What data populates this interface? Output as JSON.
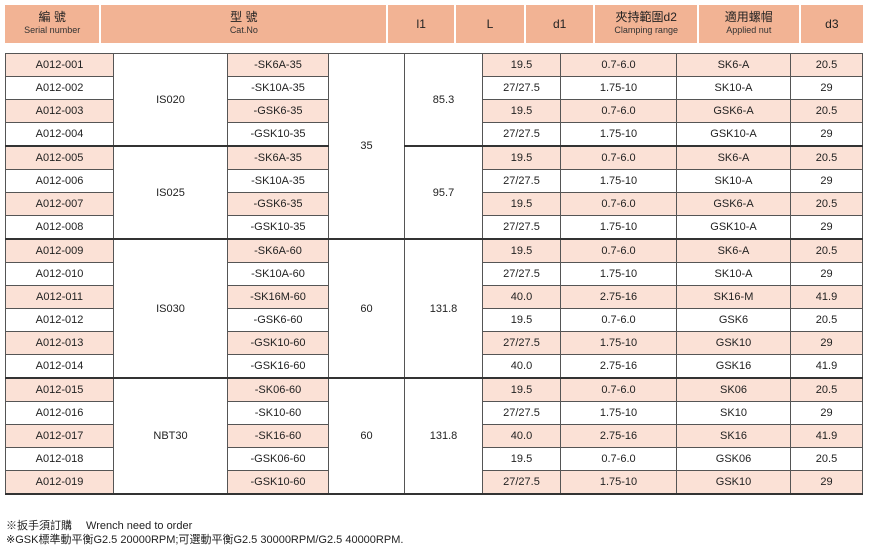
{
  "header": [
    {
      "zh": "編 號",
      "en": "Serial number"
    },
    {
      "zh": "型 號",
      "en": "Cat.No"
    },
    {
      "zh": "l1",
      "en": ""
    },
    {
      "zh": "L",
      "en": ""
    },
    {
      "zh": "d1",
      "en": ""
    },
    {
      "zh": "夾持範圍d2",
      "en": "Clamping range"
    },
    {
      "zh": "適用螺帽",
      "en": "Applied nut"
    },
    {
      "zh": "d3",
      "en": ""
    }
  ],
  "groups": [
    {
      "model": "IS020",
      "l1": "35",
      "L": "85.3"
    },
    {
      "model": "IS025",
      "l1": "35",
      "L": "95.7"
    },
    {
      "model": "IS030",
      "l1": "60",
      "L": "131.8"
    },
    {
      "model": "NBT30",
      "l1": "60",
      "L": "131.8"
    }
  ],
  "rows": [
    [
      "A012-001",
      "-SK6A-35",
      "19.5",
      "0.7-6.0",
      "SK6-A",
      "20.5"
    ],
    [
      "A012-002",
      "-SK10A-35",
      "27/27.5",
      "1.75-10",
      "SK10-A",
      "29"
    ],
    [
      "A012-003",
      "-GSK6-35",
      "19.5",
      "0.7-6.0",
      "GSK6-A",
      "20.5"
    ],
    [
      "A012-004",
      "-GSK10-35",
      "27/27.5",
      "1.75-10",
      "GSK10-A",
      "29"
    ],
    [
      "A012-005",
      "-SK6A-35",
      "19.5",
      "0.7-6.0",
      "SK6-A",
      "20.5"
    ],
    [
      "A012-006",
      "-SK10A-35",
      "27/27.5",
      "1.75-10",
      "SK10-A",
      "29"
    ],
    [
      "A012-007",
      "-GSK6-35",
      "19.5",
      "0.7-6.0",
      "GSK6-A",
      "20.5"
    ],
    [
      "A012-008",
      "-GSK10-35",
      "27/27.5",
      "1.75-10",
      "GSK10-A",
      "29"
    ],
    [
      "A012-009",
      "-SK6A-60",
      "19.5",
      "0.7-6.0",
      "SK6-A",
      "20.5"
    ],
    [
      "A012-010",
      "-SK10A-60",
      "27/27.5",
      "1.75-10",
      "SK10-A",
      "29"
    ],
    [
      "A012-011",
      "-SK16M-60",
      "40.0",
      "2.75-16",
      "SK16-M",
      "41.9"
    ],
    [
      "A012-012",
      "-GSK6-60",
      "19.5",
      "0.7-6.0",
      "GSK6",
      "20.5"
    ],
    [
      "A012-013",
      "-GSK10-60",
      "27/27.5",
      "1.75-10",
      "GSK10",
      "29"
    ],
    [
      "A012-014",
      "-GSK16-60",
      "40.0",
      "2.75-16",
      "GSK16",
      "41.9"
    ],
    [
      "A012-015",
      "-SK06-60",
      "19.5",
      "0.7-6.0",
      "SK06",
      "20.5"
    ],
    [
      "A012-016",
      "-SK10-60",
      "27/27.5",
      "1.75-10",
      "SK10",
      "29"
    ],
    [
      "A012-017",
      "-SK16-60",
      "40.0",
      "2.75-16",
      "SK16",
      "41.9"
    ],
    [
      "A012-018",
      "-GSK06-60",
      "19.5",
      "0.7-6.0",
      "GSK06",
      "20.5"
    ],
    [
      "A012-019",
      "-GSK10-60",
      "27/27.5",
      "1.75-10",
      "GSK10",
      "29"
    ]
  ],
  "notes": [
    "※扳手須訂購　 Wrench need to order",
    "※GSK標準動平衡G2.5  20000RPM;可選動平衡G2.5  30000RPM/G2.5  40000RPM."
  ],
  "colors": {
    "header": "#f2b394",
    "stripe": "#fbe1d6"
  }
}
